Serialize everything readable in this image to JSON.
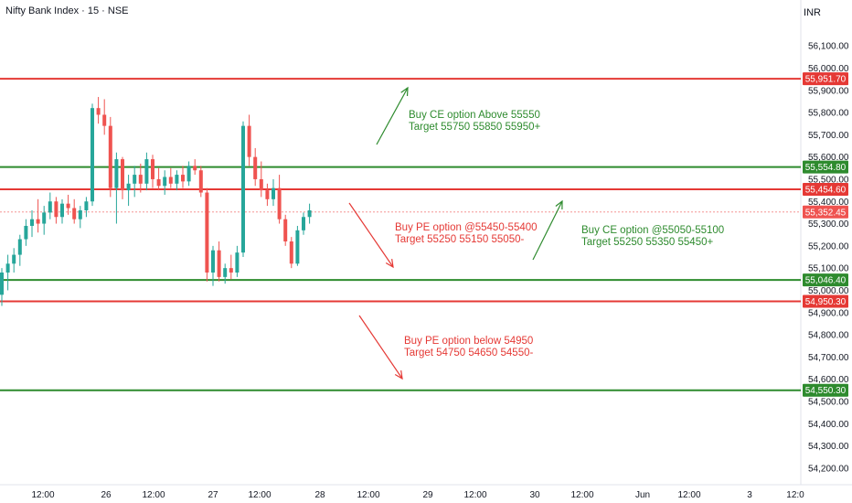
{
  "header": {
    "title": "Nifty Bank Index · 15 · NSE",
    "currency": "INR"
  },
  "colors": {
    "up": "#26a69a",
    "down": "#ef5350",
    "green_line": "#2e8b2e",
    "red_line": "#e53935",
    "current": "#ef5350"
  },
  "chart_data": {
    "type": "candlestick",
    "ylim": [
      54150,
      56150
    ],
    "y_ticks": [
      56100,
      56000,
      55900,
      55800,
      55700,
      55600,
      55500,
      55400,
      55300,
      55200,
      55100,
      55000,
      54900,
      54800,
      54700,
      54600,
      54500,
      54400,
      54300,
      54200
    ],
    "x_ticks": [
      "12:00",
      "26",
      "12:00",
      "27",
      "12:00",
      "28",
      "12:00",
      "29",
      "12:00",
      "30",
      "12:00",
      "Jun",
      "12:00",
      "3",
      "12:0"
    ],
    "levels": [
      {
        "label": "55,951.70",
        "value": 55951.7,
        "color": "red"
      },
      {
        "label": "55,554.80",
        "value": 55554.8,
        "color": "green"
      },
      {
        "label": "55,454.60",
        "value": 55454.6,
        "color": "red"
      },
      {
        "label": "55,046.40",
        "value": 55046.4,
        "color": "green"
      },
      {
        "label": "54,950.30",
        "value": 54950.3,
        "color": "red"
      },
      {
        "label": "54,550.30",
        "value": 54550.3,
        "color": "green"
      }
    ],
    "last_price": {
      "label": "55,352.45",
      "value": 55352.45
    },
    "annotations": [
      {
        "lines": [
          "Buy CE option Above 55550",
          "Target 55750 55850 55950+"
        ],
        "color": "green"
      },
      {
        "lines": [
          "Buy PE option @55450-55400",
          "Target 55250 55150 55050-"
        ],
        "color": "red"
      },
      {
        "lines": [
          "Buy CE option @55050-55100",
          "Target 55250 55350 55450+"
        ],
        "color": "green"
      },
      {
        "lines": [
          "Buy PE option below 54950",
          "Target 54750 54650 54550-"
        ],
        "color": "red"
      }
    ],
    "candles": [
      [
        54980,
        55100,
        54930,
        55080
      ],
      [
        55080,
        55160,
        55000,
        55120
      ],
      [
        55120,
        55190,
        55080,
        55160
      ],
      [
        55160,
        55250,
        55110,
        55230
      ],
      [
        55230,
        55320,
        55200,
        55290
      ],
      [
        55290,
        55360,
        55240,
        55320
      ],
      [
        55320,
        55410,
        55260,
        55300
      ],
      [
        55300,
        55380,
        55250,
        55350
      ],
      [
        55350,
        55440,
        55320,
        55400
      ],
      [
        55400,
        55420,
        55300,
        55330
      ],
      [
        55330,
        55410,
        55300,
        55390
      ],
      [
        55390,
        55430,
        55340,
        55370
      ],
      [
        55370,
        55410,
        55300,
        55320
      ],
      [
        55320,
        55380,
        55280,
        55360
      ],
      [
        55360,
        55420,
        55330,
        55400
      ],
      [
        55400,
        55840,
        55380,
        55820
      ],
      [
        55820,
        55870,
        55750,
        55790
      ],
      [
        55790,
        55860,
        55700,
        55740
      ],
      [
        55740,
        55780,
        55420,
        55460
      ],
      [
        55460,
        55620,
        55300,
        55590
      ],
      [
        55590,
        55600,
        55410,
        55450
      ],
      [
        55450,
        55520,
        55380,
        55480
      ],
      [
        55480,
        55560,
        55420,
        55520
      ],
      [
        55520,
        55570,
        55440,
        55480
      ],
      [
        55480,
        55620,
        55450,
        55590
      ],
      [
        55590,
        55610,
        55460,
        55500
      ],
      [
        55500,
        55550,
        55450,
        55470
      ],
      [
        55470,
        55540,
        55430,
        55510
      ],
      [
        55510,
        55550,
        55460,
        55480
      ],
      [
        55480,
        55540,
        55450,
        55520
      ],
      [
        55520,
        55560,
        55460,
        55490
      ],
      [
        55490,
        55580,
        55470,
        55560
      ],
      [
        55560,
        55590,
        55520,
        55540
      ],
      [
        55540,
        55560,
        55420,
        55440
      ],
      [
        55440,
        55460,
        55040,
        55080
      ],
      [
        55080,
        55200,
        55020,
        55180
      ],
      [
        55180,
        55220,
        55040,
        55060
      ],
      [
        55060,
        55120,
        55030,
        55100
      ],
      [
        55100,
        55160,
        55050,
        55080
      ],
      [
        55080,
        55200,
        55060,
        55170
      ],
      [
        55170,
        55760,
        55150,
        55740
      ],
      [
        55740,
        55790,
        55560,
        55600
      ],
      [
        55600,
        55640,
        55470,
        55500
      ],
      [
        55500,
        55580,
        55420,
        55450
      ],
      [
        55450,
        55480,
        55380,
        55410
      ],
      [
        55410,
        55500,
        55380,
        55460
      ],
      [
        55460,
        55520,
        55300,
        55320
      ],
      [
        55320,
        55340,
        55200,
        55220
      ],
      [
        55220,
        55240,
        55100,
        55120
      ],
      [
        55120,
        55290,
        55110,
        55270
      ],
      [
        55270,
        55350,
        55250,
        55330
      ],
      [
        55330,
        55390,
        55300,
        55360
      ]
    ]
  }
}
